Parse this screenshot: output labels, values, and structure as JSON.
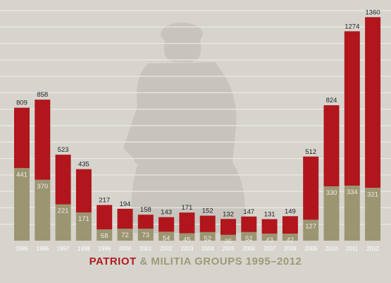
{
  "colors": {
    "background": "#d7d4ce",
    "gridline": "#ebe9e4",
    "militia": "#9c9572",
    "patriot_top": "#b0161c",
    "title_red": "#b01c1f",
    "title_olive": "#9e9a77",
    "label_light": "#efece4",
    "label_dark": "#222222",
    "silhouette": "#c6c2bb"
  },
  "title": {
    "part1": "PATRIOT",
    "part2": "& MILITIA",
    "part3": "GROUPS 1995–2012"
  },
  "chart_data": {
    "type": "bar",
    "stacked": true,
    "categories": [
      "1995",
      "1996",
      "1997",
      "1998",
      "1999",
      "2000",
      "2001",
      "2002",
      "2003",
      "2004",
      "2005",
      "2006",
      "2007",
      "2008",
      "2009",
      "2010",
      "2011",
      "2012"
    ],
    "totals": [
      809,
      858,
      523,
      435,
      217,
      194,
      158,
      143,
      171,
      152,
      132,
      147,
      131,
      149,
      512,
      824,
      1274,
      1360
    ],
    "series": [
      {
        "name": "MILITIA",
        "values": [
          441,
          370,
          221,
          171,
          68,
          72,
          73,
          54,
          45,
          52,
          35,
          52,
          43,
          42,
          127,
          330,
          334,
          321
        ]
      }
    ],
    "title": "PATRIOT & MILITIA GROUPS 1995–2012",
    "ylim": [
      0,
      1400
    ],
    "grid": true
  }
}
